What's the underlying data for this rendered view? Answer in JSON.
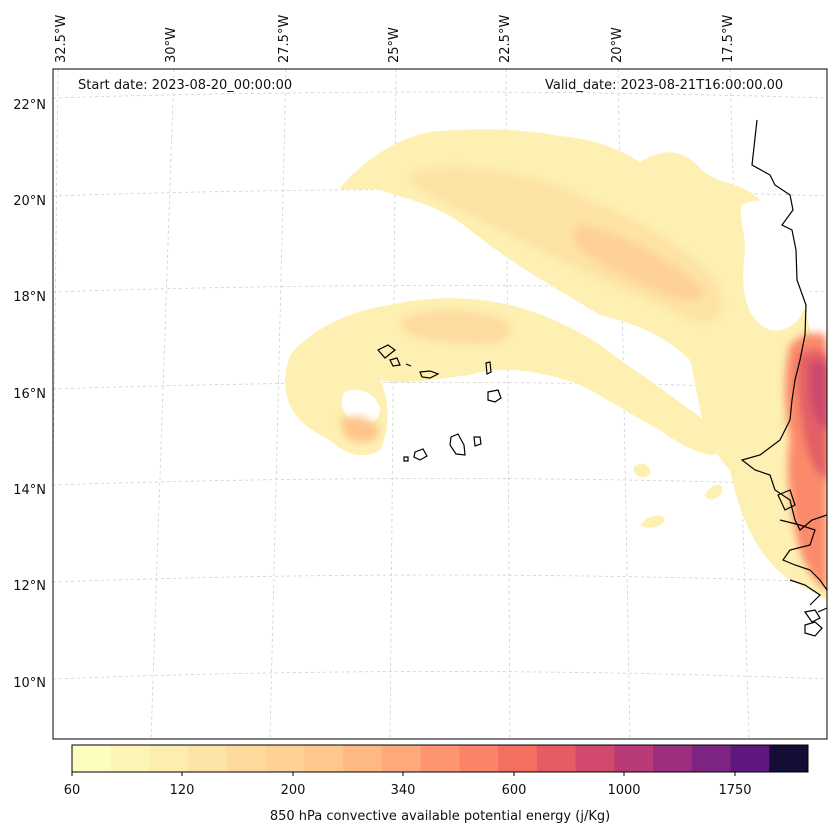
{
  "map": {
    "start_label": "Start date: 2023-08-20_00:00:00",
    "valid_label": "Valid_date: 2023-08-21T16:00:00.00",
    "lat_ticks": [
      "22°N",
      "20°N",
      "18°N",
      "16°N",
      "14°N",
      "12°N",
      "10°N"
    ],
    "lon_ticks": [
      "32.5°W",
      "30°W",
      "27.5°W",
      "25°W",
      "22.5°W",
      "20°W",
      "17.5°W"
    ],
    "colorbar": {
      "label": "850 hPa convective available potential energy (j/Kg)",
      "tick_labels": [
        "60",
        "120",
        "200",
        "340",
        "600",
        "1000",
        "1750"
      ],
      "colors": [
        "#fcfdbf",
        "#fcf5b7",
        "#fdedaf",
        "#fde4a6",
        "#fedb9d",
        "#fed194",
        "#fec78b",
        "#feb982",
        "#fea97a",
        "#fd9670",
        "#fb8368",
        "#f37061",
        "#e65b64",
        "#d14a6d",
        "#b83b78",
        "#9c2e7f",
        "#7e2482",
        "#5f187f",
        "#140e36"
      ]
    }
  }
}
